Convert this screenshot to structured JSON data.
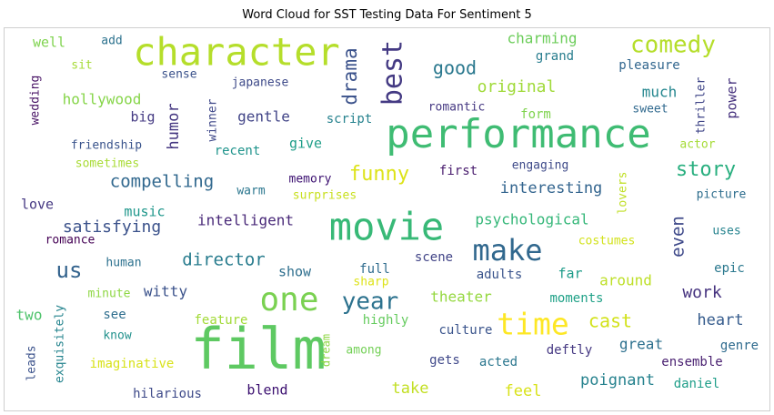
{
  "chart_data": {
    "type": "wordcloud",
    "title": "Word Cloud for SST Testing Data For Sentiment 5",
    "words": [
      {
        "text": "film",
        "weight": 62,
        "color": "#5ec962"
      },
      {
        "text": "performance",
        "weight": 44,
        "color": "#3fbc73"
      },
      {
        "text": "character",
        "weight": 42,
        "color": "#b5de2b"
      },
      {
        "text": "movie",
        "weight": 42,
        "color": "#38b977"
      },
      {
        "text": "one",
        "weight": 36,
        "color": "#7ad151"
      },
      {
        "text": "time",
        "weight": 33,
        "color": "#fde725"
      },
      {
        "text": "make",
        "weight": 32,
        "color": "#31688e"
      },
      {
        "text": "best",
        "weight": 30,
        "color": "#443a83"
      },
      {
        "text": "comedy",
        "weight": 26,
        "color": "#b5de2b"
      },
      {
        "text": "year",
        "weight": 26,
        "color": "#2c728e"
      },
      {
        "text": "us",
        "weight": 24,
        "color": "#33638d"
      },
      {
        "text": "funny",
        "weight": 22,
        "color": "#dde318"
      },
      {
        "text": "story",
        "weight": 22,
        "color": "#29af7f"
      },
      {
        "text": "drama",
        "weight": 21,
        "color": "#3b528b"
      },
      {
        "text": "cast",
        "weight": 20,
        "color": "#d2e21b"
      },
      {
        "text": "good",
        "weight": 20,
        "color": "#2a788e"
      },
      {
        "text": "compelling",
        "weight": 19,
        "color": "#31688e"
      },
      {
        "text": "director",
        "weight": 19,
        "color": "#287c8e"
      },
      {
        "text": "even",
        "weight": 19,
        "color": "#3e4989"
      },
      {
        "text": "work",
        "weight": 18,
        "color": "#46337f"
      },
      {
        "text": "satisfying",
        "weight": 18,
        "color": "#3b528b"
      },
      {
        "text": "original",
        "weight": 18,
        "color": "#a0da39"
      },
      {
        "text": "humor",
        "weight": 17,
        "color": "#453781"
      },
      {
        "text": "take",
        "weight": 17,
        "color": "#c2df23"
      },
      {
        "text": "feel",
        "weight": 17,
        "color": "#d8e219"
      },
      {
        "text": "heart",
        "weight": 17,
        "color": "#365c8d"
      },
      {
        "text": "poignant",
        "weight": 17,
        "color": "#26828e"
      },
      {
        "text": "interesting",
        "weight": 17,
        "color": "#32648e"
      },
      {
        "text": "intelligent",
        "weight": 16,
        "color": "#482878"
      },
      {
        "text": "psychological",
        "weight": 16,
        "color": "#35b779"
      },
      {
        "text": "hollywood",
        "weight": 16,
        "color": "#86d549"
      },
      {
        "text": "gentle",
        "weight": 16,
        "color": "#414487"
      },
      {
        "text": "great",
        "weight": 16,
        "color": "#2d708e"
      },
      {
        "text": "much",
        "weight": 16,
        "color": "#24868e"
      },
      {
        "text": "witty",
        "weight": 16,
        "color": "#3b528b"
      },
      {
        "text": "two",
        "weight": 16,
        "color": "#4ec36b"
      },
      {
        "text": "around",
        "weight": 16,
        "color": "#bddf26"
      },
      {
        "text": "theater",
        "weight": 16,
        "color": "#95d840"
      },
      {
        "text": "charming",
        "weight": 16,
        "color": "#6ccd5a"
      },
      {
        "text": "music",
        "weight": 15,
        "color": "#1f978b"
      },
      {
        "text": "big",
        "weight": 15,
        "color": "#443a83"
      },
      {
        "text": "power",
        "weight": 15,
        "color": "#46327e"
      },
      {
        "text": "well",
        "weight": 15,
        "color": "#7fd34e"
      },
      {
        "text": "love",
        "weight": 15,
        "color": "#453882"
      },
      {
        "text": "blend",
        "weight": 15,
        "color": "#3b0f70"
      },
      {
        "text": "give",
        "weight": 15,
        "color": "#1f9e89"
      },
      {
        "text": "show",
        "weight": 15,
        "color": "#2e6f8e"
      },
      {
        "text": "far",
        "weight": 15,
        "color": "#1e9c89"
      },
      {
        "text": "hilarious",
        "weight": 14,
        "color": "#3e4a89"
      },
      {
        "text": "imaginative",
        "weight": 14,
        "color": "#d8e219"
      },
      {
        "text": "first",
        "weight": 14,
        "color": "#481b6d"
      },
      {
        "text": "culture",
        "weight": 14,
        "color": "#3a548c"
      },
      {
        "text": "moments",
        "weight": 14,
        "color": "#1fa187"
      },
      {
        "text": "see",
        "weight": 14,
        "color": "#2e6e8e"
      },
      {
        "text": "pleasure",
        "weight": 14,
        "color": "#31668e"
      },
      {
        "text": "grand",
        "weight": 14,
        "color": "#287d8e"
      },
      {
        "text": "feature",
        "weight": 14,
        "color": "#a2da37"
      },
      {
        "text": "acted",
        "weight": 14,
        "color": "#2a768e"
      },
      {
        "text": "full",
        "weight": 14,
        "color": "#2f6c8e"
      },
      {
        "text": "gets",
        "weight": 14,
        "color": "#3f4889"
      },
      {
        "text": "highly",
        "weight": 14,
        "color": "#65cb5e"
      },
      {
        "text": "form",
        "weight": 14,
        "color": "#7fd34e"
      },
      {
        "text": "genre",
        "weight": 14,
        "color": "#2f6b8e"
      },
      {
        "text": "epic",
        "weight": 14,
        "color": "#2a788e"
      },
      {
        "text": "script",
        "weight": 14,
        "color": "#26828e"
      },
      {
        "text": "recent",
        "weight": 14,
        "color": "#1f948c"
      },
      {
        "text": "ensemble",
        "weight": 14,
        "color": "#481f70"
      },
      {
        "text": "daniel",
        "weight": 14,
        "color": "#1f9e89"
      },
      {
        "text": "japanese",
        "weight": 13,
        "color": "#3e4a89"
      },
      {
        "text": "sense",
        "weight": 13,
        "color": "#3b528b"
      },
      {
        "text": "romantic",
        "weight": 13,
        "color": "#453882"
      },
      {
        "text": "sweet",
        "weight": 13,
        "color": "#30698e"
      },
      {
        "text": "thriller",
        "weight": 13,
        "color": "#404688"
      },
      {
        "text": "winner",
        "weight": 13,
        "color": "#3f4889"
      },
      {
        "text": "exquisitely",
        "weight": 13,
        "color": "#25848e"
      },
      {
        "text": "leads",
        "weight": 13,
        "color": "#3b528b"
      },
      {
        "text": "wedding",
        "weight": 13,
        "color": "#471164"
      },
      {
        "text": "friendship",
        "weight": 13,
        "color": "#3a548c"
      },
      {
        "text": "memory",
        "weight": 13,
        "color": "#3b0f70"
      },
      {
        "text": "warm",
        "weight": 13,
        "color": "#2a768e"
      },
      {
        "text": "human",
        "weight": 13,
        "color": "#2c718e"
      },
      {
        "text": "minute",
        "weight": 13,
        "color": "#8fd744"
      },
      {
        "text": "know",
        "weight": 13,
        "color": "#21918c"
      },
      {
        "text": "romance",
        "weight": 13,
        "color": "#440154"
      },
      {
        "text": "sometimes",
        "weight": 13,
        "color": "#a8db34"
      },
      {
        "text": "add",
        "weight": 13,
        "color": "#2c728e"
      },
      {
        "text": "sit",
        "weight": 13,
        "color": "#a5db36"
      },
      {
        "text": "surprises",
        "weight": 13,
        "color": "#c8e020"
      },
      {
        "text": "engaging",
        "weight": 13,
        "color": "#3e4a89"
      },
      {
        "text": "lovers",
        "weight": 13,
        "color": "#c0df25"
      },
      {
        "text": "costumes",
        "weight": 13,
        "color": "#d2e21b"
      },
      {
        "text": "picture",
        "weight": 13,
        "color": "#2e6e8e"
      },
      {
        "text": "uses",
        "weight": 13,
        "color": "#25838e"
      },
      {
        "text": "actor",
        "weight": 13,
        "color": "#a5db36"
      },
      {
        "text": "deftly",
        "weight": 14,
        "color": "#453882"
      },
      {
        "text": "adults",
        "weight": 14,
        "color": "#3a548c"
      },
      {
        "text": "scene",
        "weight": 14,
        "color": "#414487"
      },
      {
        "text": "sharp",
        "weight": 13,
        "color": "#dde318"
      },
      {
        "text": "among",
        "weight": 13,
        "color": "#73d056"
      },
      {
        "text": "dream",
        "weight": 12,
        "color": "#8fd744"
      }
    ]
  }
}
